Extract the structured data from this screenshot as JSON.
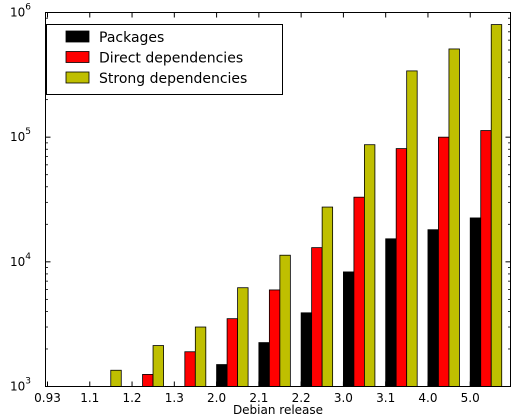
{
  "chart_data": {
    "type": "bar",
    "title": "",
    "xlabel": "Debian release",
    "ylabel": "",
    "yscale": "log",
    "ylim": [
      1000,
      1000000
    ],
    "y_ticks": [
      {
        "value": 1000,
        "base": "10",
        "exp": "3"
      },
      {
        "value": 10000,
        "base": "10",
        "exp": "4"
      },
      {
        "value": 100000,
        "base": "10",
        "exp": "5"
      },
      {
        "value": 1000000,
        "base": "10",
        "exp": "6"
      }
    ],
    "categories": [
      "0.93",
      "1.1",
      "1.2",
      "1.3",
      "2.0",
      "2.1",
      "2.2",
      "3.0",
      "3.1",
      "4.0",
      "5.0"
    ],
    "series": [
      {
        "name": "Packages",
        "color": "#000000",
        "values": [
          null,
          null,
          null,
          null,
          1500,
          2250,
          3900,
          8300,
          15300,
          18100,
          22500
        ]
      },
      {
        "name": "Direct dependencies",
        "color": "#ff0000",
        "values": [
          null,
          null,
          1250,
          1900,
          3500,
          5950,
          13000,
          33000,
          81000,
          100000,
          113000
        ]
      },
      {
        "name": "Strong dependencies",
        "color": "#bfbf00",
        "values": [
          null,
          1350,
          2130,
          3000,
          6200,
          11300,
          27500,
          87000,
          340000,
          510000,
          800000
        ]
      }
    ],
    "legend_position": "top-left",
    "grid": false
  }
}
